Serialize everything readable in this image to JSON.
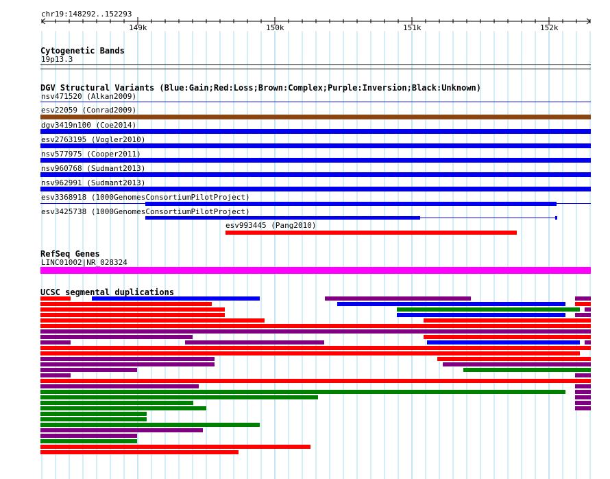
{
  "ruler": {
    "location": "chr19:148292..152293",
    "ticks": [
      "149k",
      "150k",
      "151k",
      "152k"
    ]
  },
  "colors": {
    "blue": "#0000ee",
    "red": "#ff0000",
    "brown": "#8b4513",
    "purple": "#800080",
    "green": "#008000",
    "magenta": "#ff00ff",
    "grid": "#a8dcf0"
  },
  "cytobands": {
    "title": "Cytogenetic Bands",
    "band": "19p13.3"
  },
  "dgv": {
    "title": "DGV Structural Variants (Blue:Gain;Red:Loss;Brown:Complex;Purple:Inversion;Black:Unknown)",
    "variants": [
      {
        "name": "nsv471520 (Alkan2009)",
        "color": "blue",
        "type": "thin"
      },
      {
        "name": "esv22059 (Conrad2009)",
        "color": "brown",
        "type": "bar"
      },
      {
        "name": "dgv3419n100 (Coe2014)",
        "color": "blue",
        "type": "bar"
      },
      {
        "name": "esv2763195 (Vogler2010)",
        "color": "blue",
        "type": "bar"
      },
      {
        "name": "nsv577975 (Cooper2011)",
        "color": "blue",
        "type": "bar"
      },
      {
        "name": "nsv960768 (Sudmant2013)",
        "color": "blue",
        "type": "bar"
      },
      {
        "name": "nsv962991 (Sudmant2013)",
        "color": "blue",
        "type": "bar"
      },
      {
        "name": "esv3368918 (1000GenomesConsortiumPilotProject)",
        "color": "blue",
        "type": "split"
      },
      {
        "name": "esv3425738 (1000GenomesConsortiumPilotProject)",
        "color": "blue",
        "type": "split2"
      },
      {
        "name": "esv993445 (Pang2010)",
        "color": "red",
        "type": "bar"
      }
    ]
  },
  "refseq": {
    "title": "RefSeq Genes",
    "gene": "LINC01002|NR_028324"
  },
  "segdups": {
    "title": "UCSC segmental duplications"
  }
}
